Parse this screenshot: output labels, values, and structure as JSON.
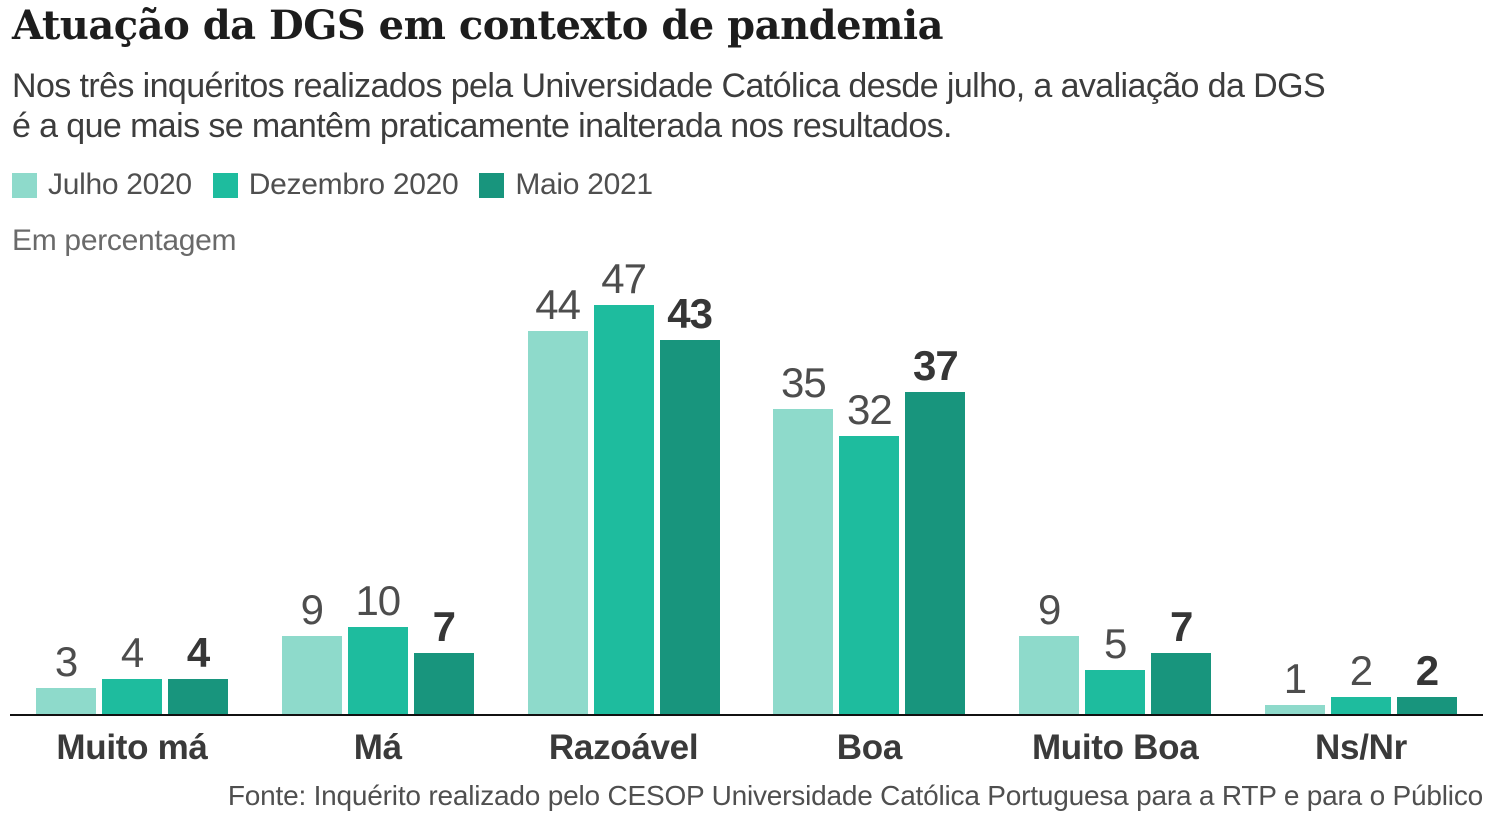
{
  "header": {
    "title": "Atuação da DGS em contexto de pandemia",
    "subtitle_line1": "Nos três inquéritos realizados pela Universidade Católica desde julho, a avaliação da DGS",
    "subtitle_line2": "é a que mais se mantêm praticamente inalterada nos resultados."
  },
  "unit_note": "Em percentagem",
  "source": "Fonte: Inquérito realizado pelo CESOP Universidade Católica Portuguesa para a RTP e para o Público",
  "chart_data": {
    "type": "bar",
    "title": "Atuação da DGS em contexto de pandemia",
    "unit": "percent",
    "categories": [
      "Muito má",
      "Má",
      "Razoável",
      "Boa",
      "Muito Boa",
      "Ns/Nr"
    ],
    "series": [
      {
        "name": "Julho 2020",
        "color": "#8EDACB",
        "values": [
          3,
          9,
          44,
          35,
          9,
          1
        ],
        "emphasis": false
      },
      {
        "name": "Dezembro 2020",
        "color": "#1EBC9E",
        "values": [
          4,
          10,
          47,
          32,
          5,
          2
        ],
        "emphasis": false
      },
      {
        "name": "Maio 2021",
        "color": "#18957D",
        "values": [
          4,
          7,
          43,
          37,
          7,
          2
        ],
        "emphasis": true
      }
    ],
    "ylim": [
      0,
      47
    ],
    "grid": false,
    "legend_position": "top",
    "value_labels": true,
    "axis_color": "#111111"
  }
}
